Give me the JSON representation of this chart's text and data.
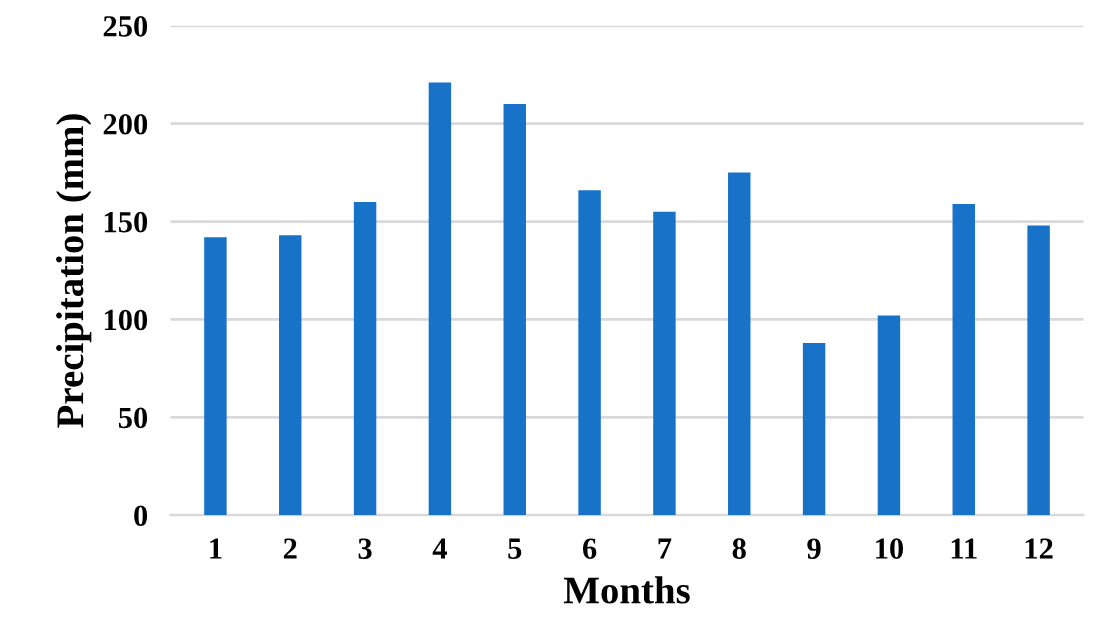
{
  "chart_data": {
    "type": "bar",
    "xlabel": "Months",
    "ylabel": "Precipitation (mm)",
    "categories": [
      "1",
      "2",
      "3",
      "4",
      "5",
      "6",
      "7",
      "8",
      "9",
      "10",
      "11",
      "12"
    ],
    "values": [
      142,
      143,
      160,
      221,
      210,
      166,
      155,
      175,
      88,
      102,
      159,
      148
    ],
    "color": "#1872c8",
    "ylim": [
      0,
      250
    ],
    "yticks": [
      0,
      50,
      100,
      150,
      200,
      250
    ],
    "grid": "y"
  }
}
